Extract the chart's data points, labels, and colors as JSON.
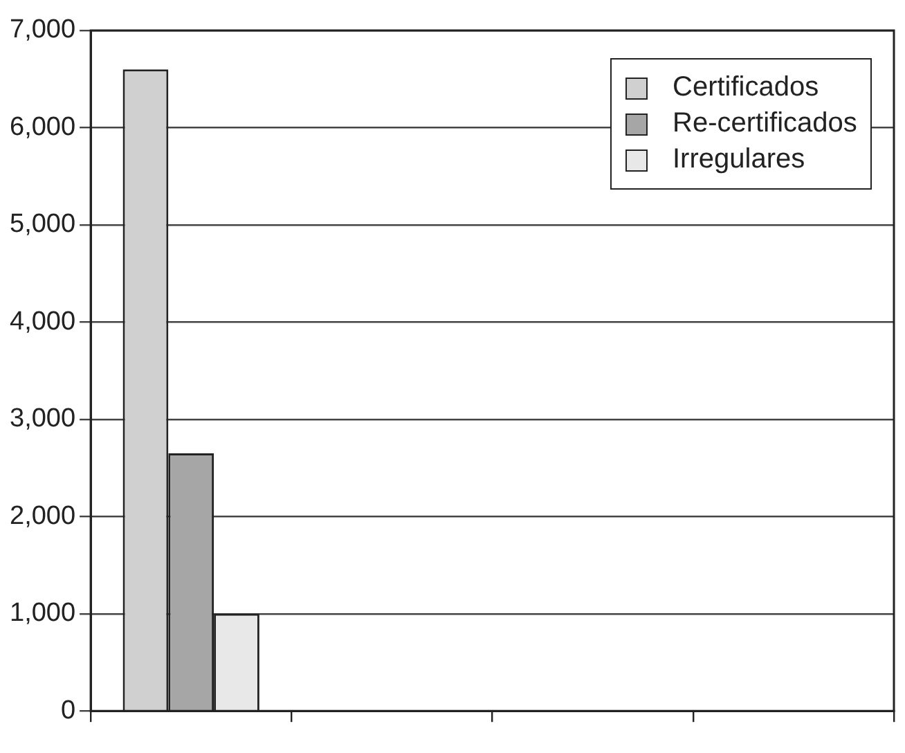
{
  "chart_data": {
    "type": "bar",
    "categories": [
      null,
      null,
      null,
      null
    ],
    "series": [
      {
        "name": "Certificados",
        "color": "#d0d0d0",
        "values": [
          6600,
          null,
          null,
          null
        ]
      },
      {
        "name": "Re-certificados",
        "color": "#a6a6a6",
        "values": [
          2650,
          null,
          null,
          null
        ]
      },
      {
        "name": "Irregulares",
        "color": "#e8e8e8",
        "values": [
          1000,
          null,
          null,
          null
        ]
      }
    ],
    "ylim": [
      0,
      7000
    ],
    "yticks": [
      0,
      {
        "value": 1000,
        "label": "1,000"
      },
      {
        "value": 2000,
        "label": "2,000"
      },
      {
        "value": 3000,
        "label": "3,000"
      },
      {
        "value": 4000,
        "label": "4,000"
      },
      {
        "value": 5000,
        "label": "5,000"
      },
      {
        "value": 6000,
        "label": "6,000"
      },
      {
        "value": 7000,
        "label": "7,000"
      }
    ],
    "grid": "y",
    "legend": "top right"
  }
}
